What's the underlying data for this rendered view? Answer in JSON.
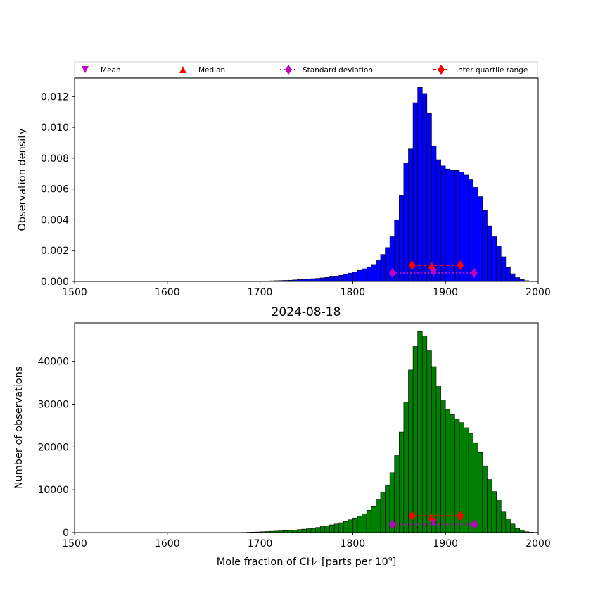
{
  "legend": {
    "placement": "above top panel",
    "items": [
      {
        "label": "Mean",
        "marker": "triangle-down",
        "color": "#bf00bf",
        "line": "none"
      },
      {
        "label": "Median",
        "marker": "triangle-up",
        "color": "#ff0000",
        "line": "none"
      },
      {
        "label": "Standard deviation",
        "marker": "diamond",
        "color": "#bf00bf",
        "line": "dotted"
      },
      {
        "label": "Inter quartile range",
        "marker": "diamond",
        "color": "#ff0000",
        "line": "dashed"
      }
    ]
  },
  "summary_stats": {
    "mean": 1887,
    "median": 1885,
    "std_range": [
      1843,
      1931
    ],
    "iqr_range": [
      1864,
      1916
    ]
  },
  "chart_data": [
    {
      "type": "bar",
      "panel": "top",
      "title": "",
      "xlabel": "",
      "ylabel": "Observation density",
      "xlim": [
        1500,
        2000
      ],
      "ylim": [
        0,
        0.0132
      ],
      "xticks": [
        "1500",
        "1600",
        "1700",
        "1800",
        "1900",
        "2000"
      ],
      "yticks": [
        "0.000",
        "0.002",
        "0.004",
        "0.006",
        "0.008",
        "0.010",
        "0.012"
      ],
      "grid": false,
      "bar_color": "#0000ff",
      "bin_width": 5,
      "bin_start": 1500,
      "values": [
        0,
        0,
        0,
        0,
        0,
        0,
        0,
        0,
        0,
        0,
        0,
        0,
        0,
        0,
        0,
        0,
        0,
        0,
        0,
        0,
        0,
        0,
        0,
        0,
        0,
        0,
        0,
        0,
        0,
        0,
        0,
        0,
        0,
        0,
        0,
        0,
        1e-05,
        1e-05,
        2e-05,
        2e-05,
        3e-05,
        3e-05,
        4e-05,
        5e-05,
        6e-05,
        7e-05,
        8e-05,
        0.0001,
        0.00012,
        0.00014,
        0.00016,
        0.00018,
        0.0002,
        0.00023,
        0.00026,
        0.0003,
        0.00035,
        0.0004,
        0.00046,
        0.00054,
        0.00062,
        0.00072,
        0.00082,
        0.00095,
        0.0011,
        0.00135,
        0.00175,
        0.0022,
        0.0029,
        0.004,
        0.0056,
        0.0077,
        0.0086,
        0.0116,
        0.0126,
        0.0122,
        0.0109,
        0.0088,
        0.0079,
        0.0075,
        0.0073,
        0.0072,
        0.0072,
        0.0071,
        0.0069,
        0.0066,
        0.0061,
        0.0055,
        0.0046,
        0.0036,
        0.0029,
        0.0023,
        0.0016,
        0.0009,
        0.0005,
        0.00025,
        0.00012,
        5e-05,
        2e-05,
        1e-05
      ]
    },
    {
      "type": "bar",
      "panel": "bottom",
      "title": "2024-08-18",
      "xlabel": "Mole fraction of CH₄ [parts per 10⁹]",
      "ylabel": "Number of observations",
      "xlim": [
        1500,
        2000
      ],
      "ylim": [
        0,
        49000
      ],
      "xticks": [
        "1500",
        "1600",
        "1700",
        "1800",
        "1900",
        "2000"
      ],
      "yticks": [
        "0",
        "10000",
        "20000",
        "30000",
        "40000"
      ],
      "grid": false,
      "bar_color": "#008000",
      "bin_width": 5,
      "bin_start": 1500,
      "values": [
        0,
        0,
        0,
        0,
        0,
        0,
        0,
        0,
        0,
        0,
        0,
        0,
        0,
        0,
        0,
        0,
        0,
        0,
        0,
        0,
        0,
        0,
        0,
        0,
        0,
        0,
        0,
        0,
        0,
        0,
        0,
        0,
        0,
        0,
        0,
        0,
        50,
        80,
        120,
        150,
        200,
        250,
        300,
        350,
        400,
        450,
        500,
        600,
        700,
        800,
        900,
        1000,
        1200,
        1400,
        1600,
        1800,
        2000,
        2300,
        2600,
        3000,
        3400,
        3900,
        4400,
        5200,
        6200,
        7800,
        9500,
        11000,
        14000,
        18000,
        23500,
        30500,
        38000,
        43500,
        47000,
        46000,
        42500,
        38800,
        34300,
        31000,
        28800,
        27600,
        26500,
        25700,
        24500,
        23200,
        21000,
        18700,
        15600,
        12400,
        9600,
        7600,
        4800,
        3200,
        2000,
        1000,
        500,
        200,
        100,
        50
      ]
    }
  ]
}
